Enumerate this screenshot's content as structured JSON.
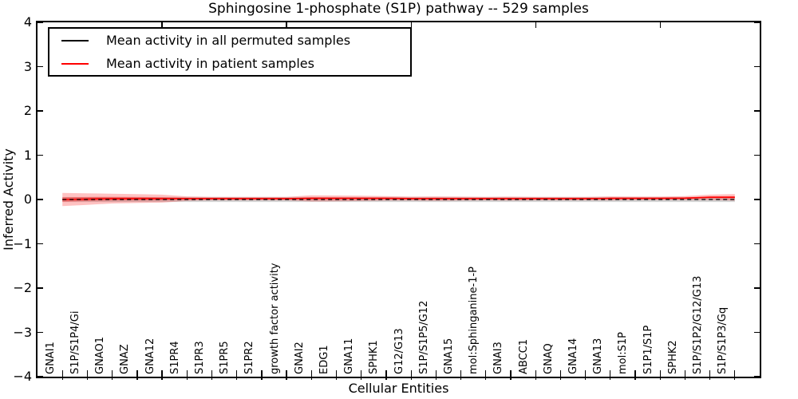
{
  "title": "Sphingosine 1-phosphate (S1P) pathway -- 529 samples",
  "axes": {
    "xlabel": "Cellular Entities",
    "ylabel": "Inferred Activity"
  },
  "colors": {
    "permuted_line": "#000000",
    "patient_line": "#ff0000",
    "permuted_band": "rgba(130,130,130,0.35)",
    "patient_band": "rgba(255,0,0,0.24)",
    "patient_band_inner": "rgba(255,0,0,0.32)",
    "axis": "#000000",
    "background": "#ffffff"
  },
  "chart_data": {
    "type": "line",
    "title": "Sphingosine 1-phosphate (S1P) pathway -- 529 samples",
    "xlabel": "Cellular Entities",
    "ylabel": "Inferred Activity",
    "ylim": [
      -4,
      4
    ],
    "yticks": [
      -4,
      -3,
      -2,
      -1,
      0,
      1,
      2,
      3,
      4
    ],
    "xlim": [
      0,
      29
    ],
    "top_axis_ticks": [
      5,
      10,
      15,
      20,
      25
    ],
    "grid": false,
    "legend_position": "upper left",
    "categories": [
      "GNAI1",
      "S1P/S1P4/Gi",
      "GNAO1",
      "GNAZ",
      "GNA12",
      "S1PR4",
      "S1PR3",
      "S1PR5",
      "S1PR2",
      "growth factor activity",
      "GNAI2",
      "EDG1",
      "GNA11",
      "SPHK1",
      "G12/G13",
      "S1P/S1P5/G12",
      "GNA15",
      "mol:Sphinganine-1-P",
      "GNAI3",
      "ABCC1",
      "GNAQ",
      "GNA14",
      "GNA13",
      "mol:S1P",
      "S1P1/S1P",
      "SPHK2",
      "S1P/S1P2/G12/G13",
      "S1P/S1P3/Gq"
    ],
    "series": [
      {
        "name": "Mean activity in all permuted samples",
        "color": "#000000",
        "style": "dashed",
        "values": [
          0,
          0,
          0,
          0,
          0,
          0,
          0,
          0,
          0,
          0,
          0,
          0,
          0,
          0,
          0,
          0,
          0,
          0,
          0,
          0,
          0,
          0,
          0,
          0,
          0,
          0,
          0,
          0
        ],
        "band": [
          0.055,
          0.055,
          0.055,
          0.055,
          0.055,
          0.055,
          0.055,
          0.055,
          0.055,
          0.055,
          0.055,
          0.055,
          0.055,
          0.055,
          0.055,
          0.055,
          0.055,
          0.055,
          0.055,
          0.055,
          0.055,
          0.055,
          0.055,
          0.055,
          0.055,
          0.055,
          0.055,
          0.055
        ]
      },
      {
        "name": "Mean activity in patient samples",
        "color": "#ff0000",
        "style": "solid",
        "values": [
          0.0,
          0.01,
          0.02,
          0.02,
          0.02,
          0.02,
          0.02,
          0.02,
          0.02,
          0.02,
          0.025,
          0.025,
          0.025,
          0.025,
          0.02,
          0.02,
          0.02,
          0.02,
          0.02,
          0.02,
          0.02,
          0.02,
          0.025,
          0.025,
          0.025,
          0.03,
          0.05,
          0.05
        ],
        "band_std": [
          0.15,
          0.13,
          0.11,
          0.1,
          0.09,
          0.05,
          0.04,
          0.04,
          0.04,
          0.04,
          0.07,
          0.065,
          0.06,
          0.05,
          0.045,
          0.05,
          0.045,
          0.04,
          0.045,
          0.04,
          0.04,
          0.04,
          0.045,
          0.04,
          0.04,
          0.045,
          0.06,
          0.075
        ],
        "band_sem": [
          0.05,
          0.045,
          0.04,
          0.035,
          0.03,
          0.017,
          0.013,
          0.013,
          0.013,
          0.013,
          0.023,
          0.022,
          0.02,
          0.017,
          0.015,
          0.017,
          0.015,
          0.013,
          0.015,
          0.013,
          0.013,
          0.013,
          0.015,
          0.013,
          0.013,
          0.015,
          0.02,
          0.025
        ]
      }
    ]
  }
}
